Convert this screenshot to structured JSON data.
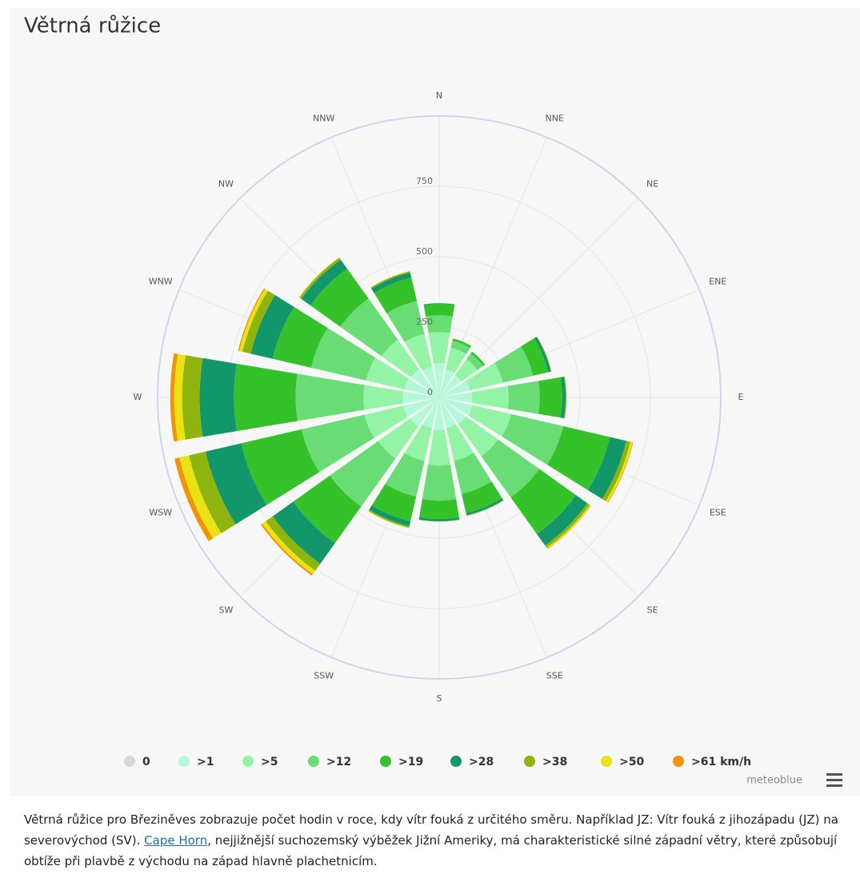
{
  "chart_data": {
    "type": "windrose",
    "title": "Větrná růžice",
    "categories": [
      "N",
      "NNE",
      "NE",
      "ENE",
      "E",
      "ESE",
      "SE",
      "SSE",
      "S",
      "SSW",
      "SW",
      "WSW",
      "W",
      "WNW",
      "NW",
      "NNW"
    ],
    "ylim": [
      0,
      1000
    ],
    "yticks": [
      0,
      250,
      500,
      750
    ],
    "series": [
      {
        "name": "0",
        "color": "#dcd6dc",
        "values": [
          2,
          2,
          2,
          2,
          2,
          2,
          2,
          2,
          2,
          2,
          2,
          2,
          2,
          2,
          2,
          2
        ]
      },
      {
        "name": ">1",
        "color": "#b6f7da",
        "values": [
          120,
          100,
          95,
          110,
          115,
          120,
          115,
          110,
          115,
          110,
          125,
          130,
          128,
          125,
          120,
          110
        ]
      },
      {
        "name": ">5",
        "color": "#94f4a6",
        "values": [
          110,
          80,
          70,
          120,
          130,
          140,
          140,
          120,
          125,
          120,
          140,
          140,
          139,
          140,
          130,
          120
        ]
      },
      {
        "name": ">12",
        "color": "#6adc76",
        "values": [
          60,
          25,
          25,
          110,
          110,
          190,
          180,
          120,
          125,
          130,
          210,
          230,
          241,
          200,
          180,
          120
        ]
      },
      {
        "name": ">19",
        "color": "#35c12a",
        "values": [
          40,
          8,
          8,
          55,
          80,
          170,
          160,
          70,
          65,
          90,
          160,
          220,
          219,
          140,
          130,
          85
        ]
      },
      {
        "name": ">28",
        "color": "#12976a",
        "values": [
          3,
          0,
          0,
          10,
          12,
          60,
          50,
          8,
          8,
          18,
          90,
          130,
          122,
          80,
          40,
          18
        ]
      },
      {
        "name": ">38",
        "color": "#90b40e",
        "values": [
          0,
          0,
          0,
          2,
          3,
          15,
          10,
          2,
          1,
          5,
          30,
          60,
          62,
          30,
          8,
          5
        ]
      },
      {
        "name": ">50",
        "color": "#ebe216",
        "values": [
          0,
          0,
          0,
          0,
          0,
          8,
          5,
          0,
          0,
          2,
          15,
          35,
          28,
          12,
          2,
          1
        ]
      },
      {
        "name": ">61 km/h",
        "color": "#f29400",
        "values": [
          0,
          0,
          0,
          0,
          0,
          2,
          1,
          0,
          0,
          0,
          6,
          18,
          14,
          4,
          0,
          0
        ]
      }
    ]
  },
  "credit": "meteoblue",
  "description": {
    "before": "Větrná růžice pro Březiněves zobrazuje počet hodin v roce, kdy vítr fouká z určitého směru. Například JZ: Vítr fouká z jihozápadu (JZ) na severovýchod (SV). ",
    "link": "Cape Horn",
    "after": ", nejjižnější suchozemský výběžek Jižní Ameriky, má charakteristické silné západní větry, které způsobují obtíže při plavbě z východu na západ hlavně plachetnicím."
  }
}
